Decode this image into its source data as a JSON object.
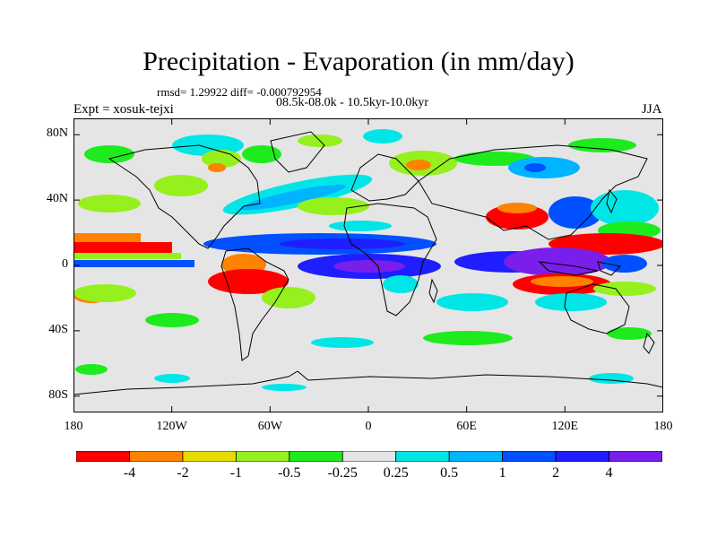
{
  "title": "Precipitation - Evaporation (in mm/day)",
  "stats": "rmsd= 1.29922 diff= -0.000792954",
  "period": "08.5k-08.0k - 10.5kyr-10.0kyr",
  "experiment": "Expt = xosuk-tejxi",
  "season": "JJA",
  "map": {
    "background_color": "#e5e5e5",
    "coast_color": "#000000",
    "lat_labels": [
      "80N",
      "40N",
      "0",
      "40S",
      "80S"
    ],
    "lat_values": [
      80,
      40,
      0,
      -40,
      -80
    ],
    "lon_labels": [
      "180",
      "120W",
      "60W",
      "0",
      "60E",
      "120E",
      "180"
    ],
    "lon_values": [
      -180,
      -120,
      -60,
      0,
      60,
      120,
      180
    ],
    "lat_range": [
      -90,
      90
    ],
    "lon_range": [
      -180,
      180
    ]
  },
  "colorbar": {
    "colors": [
      "#ff0000",
      "#ff8200",
      "#e6dc00",
      "#96f01e",
      "#1eeb1e",
      "#e5e5e5",
      "#00e6e6",
      "#00b4ff",
      "#0050ff",
      "#1e1eff",
      "#7a1eeb"
    ],
    "labels": [
      "-4",
      "-2",
      "-1",
      "-0.5",
      "-0.25",
      "0.25",
      "0.5",
      "1",
      "2",
      "4"
    ]
  }
}
